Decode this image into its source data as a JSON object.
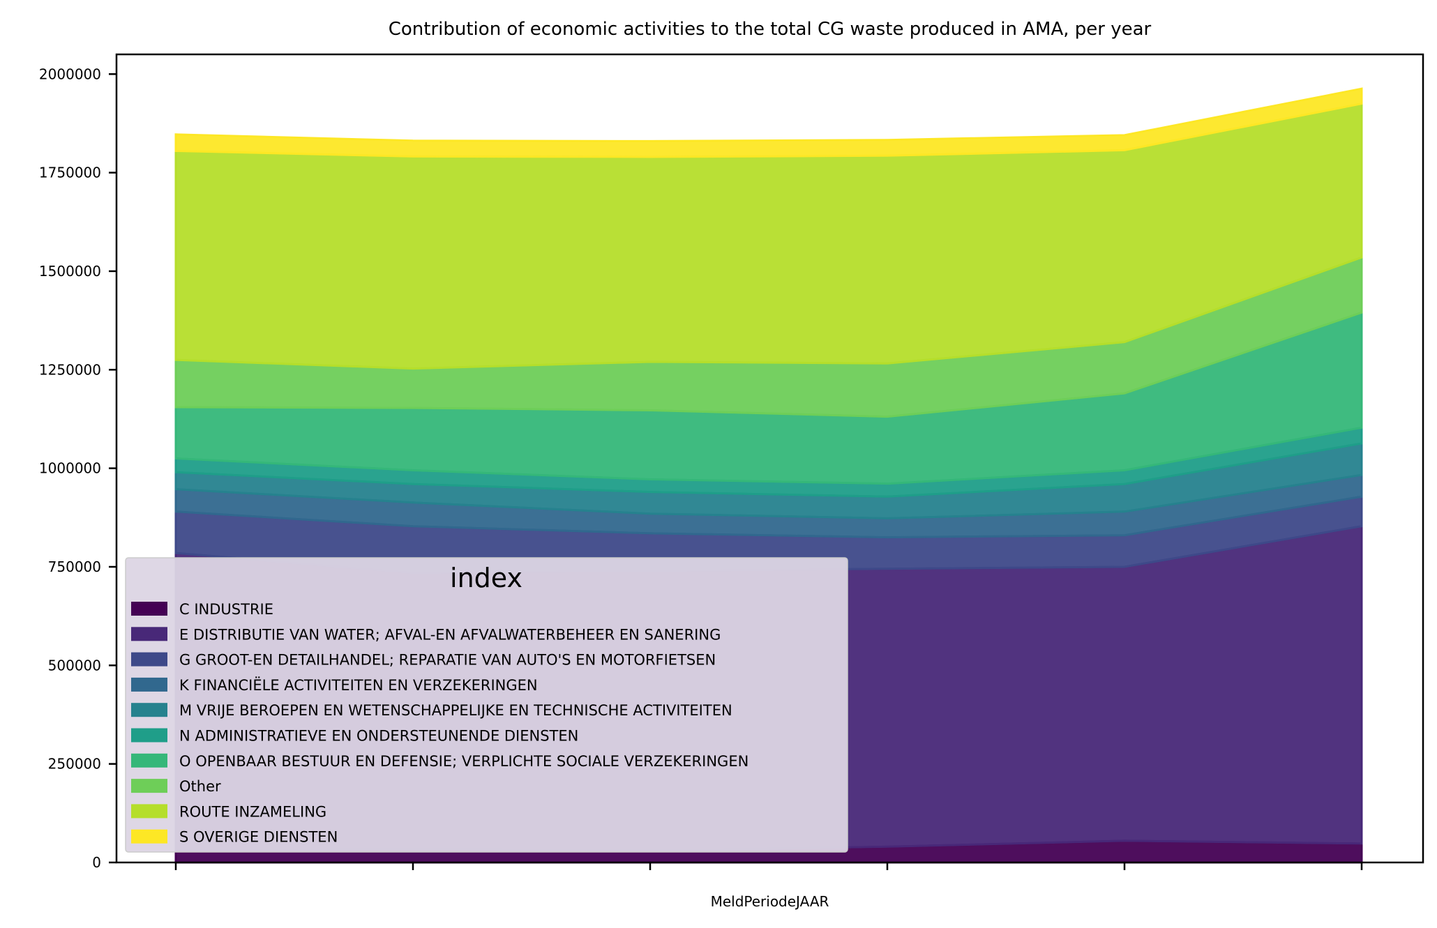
{
  "chart_data": {
    "type": "area",
    "stacked": true,
    "title": "Contribution of economic activities to the total CG waste produced in AMA, per year",
    "xlabel": "MeldPeriodeJAAR",
    "ylabel": "",
    "x": [
      0,
      1,
      2,
      3,
      4,
      5
    ],
    "xtick_labels": [
      "",
      "",
      "",
      "",
      "",
      ""
    ],
    "ylim": [
      0,
      2050000
    ],
    "yticks": [
      0,
      250000,
      500000,
      750000,
      1000000,
      1250000,
      1500000,
      1750000,
      2000000
    ],
    "ytick_labels": [
      "0",
      "250000",
      "500000",
      "750000",
      "1000000",
      "1250000",
      "1500000",
      "1750000",
      "2000000"
    ],
    "grid": false,
    "legend": {
      "title": "index",
      "position": "lower-left"
    },
    "series": [
      {
        "name": "C INDUSTRIE",
        "color": "#440154",
        "values": [
          30000,
          35000,
          30000,
          40000,
          55000,
          48000
        ]
      },
      {
        "name": "E DISTRIBUTIE VAN WATER; AFVAL-EN AFVALWATERBEHEER EN SANERING",
        "color": "#482878",
        "values": [
          755000,
          700000,
          710000,
          705000,
          695000,
          805000
        ]
      },
      {
        "name": "G GROOT-EN DETAILHANDEL; REPARATIE VAN AUTO'S EN MOTORFIETSEN",
        "color": "#3e4989",
        "values": [
          105000,
          118000,
          95000,
          80000,
          80000,
          75000
        ]
      },
      {
        "name": "K FINANCIËLE ACTIVITEITEN EN VERZEKERINGEN",
        "color": "#31688e",
        "values": [
          57000,
          60000,
          50000,
          48000,
          60000,
          55000
        ]
      },
      {
        "name": "M VRIJE BEROEPEN EN WETENSCHAPPELIJKE EN TECHNISCHE ACTIVITEITEN",
        "color": "#26828e",
        "values": [
          43000,
          47000,
          55000,
          55000,
          70000,
          80000
        ]
      },
      {
        "name": "N ADMINISTRATIEVE EN ONDERSTEUNENDE DIENSTEN",
        "color": "#1f9e89",
        "values": [
          35000,
          35000,
          32000,
          33000,
          35000,
          40000
        ]
      },
      {
        "name": "O OPENBAAR BESTUUR EN DEFENSIE; VERPLICHTE SOCIALE VERZEKERINGEN",
        "color": "#35b779",
        "values": [
          130000,
          158000,
          175000,
          170000,
          195000,
          292000
        ]
      },
      {
        "name": "Other",
        "color": "#6ece58",
        "values": [
          120000,
          100000,
          123000,
          135000,
          130000,
          140000
        ]
      },
      {
        "name": "ROUTE INZAMELING",
        "color": "#b5de2b",
        "values": [
          530000,
          538000,
          520000,
          527000,
          487000,
          390000
        ]
      },
      {
        "name": "S OVERIGE DIENSTEN",
        "color": "#fde725",
        "values": [
          42000,
          40000,
          40000,
          40000,
          38000,
          38000
        ]
      }
    ]
  }
}
